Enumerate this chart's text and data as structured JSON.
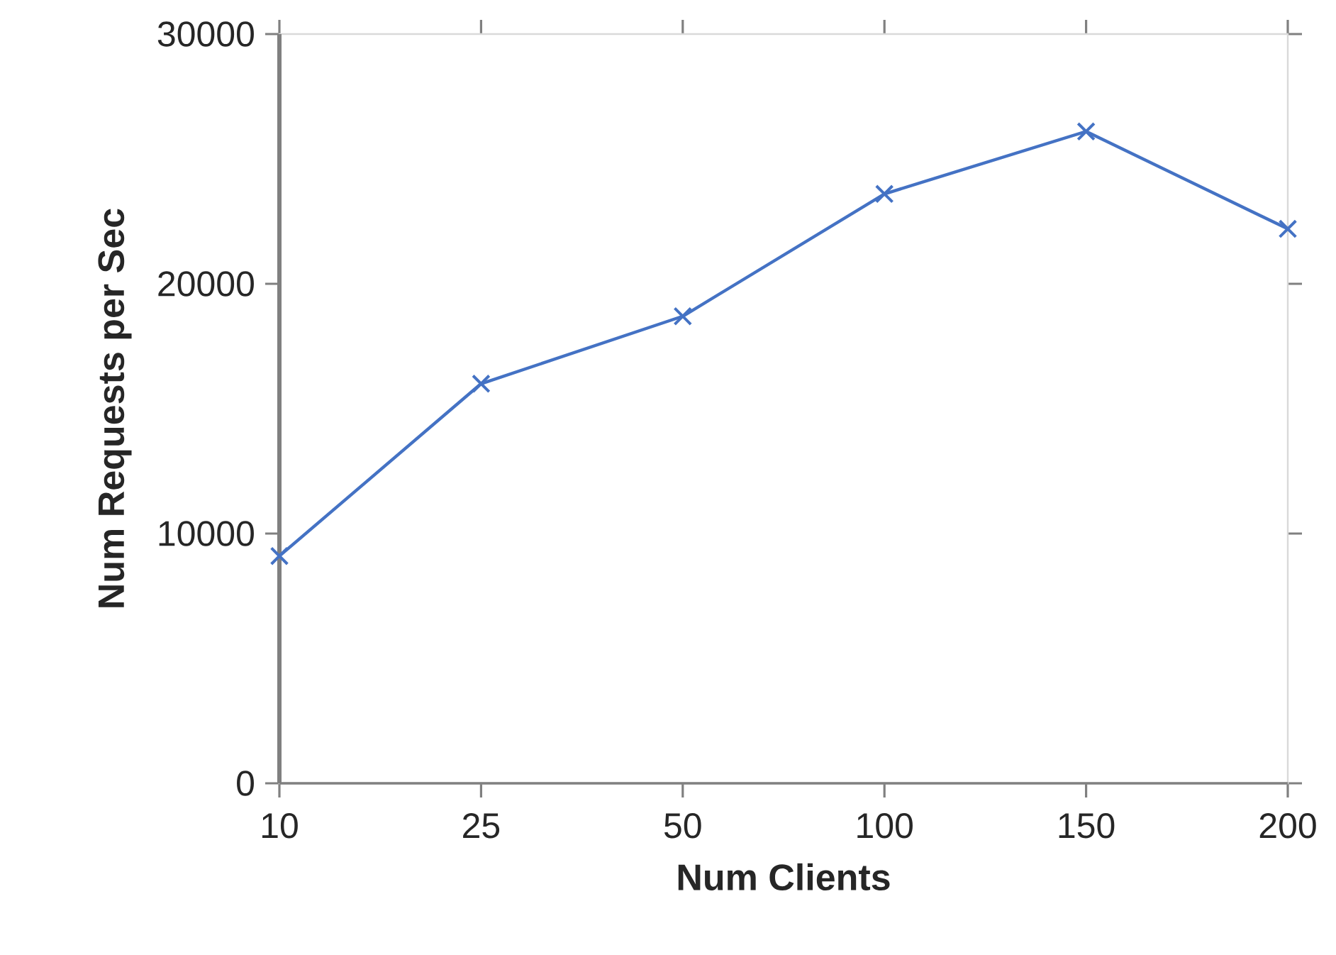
{
  "chart_data": {
    "type": "line",
    "xlabel": "Num Clients",
    "ylabel": "Num Requests per Sec",
    "categories": [
      "10",
      "25",
      "50",
      "100",
      "150",
      "200"
    ],
    "series": [
      {
        "color": "#4472c4",
        "values": [
          9100,
          16000,
          18700,
          23600,
          26100,
          22200
        ]
      }
    ],
    "ylim": [
      0,
      30000
    ],
    "yticks": [
      0,
      10000,
      20000,
      30000
    ],
    "marker": "cross",
    "line_style": "solid"
  }
}
